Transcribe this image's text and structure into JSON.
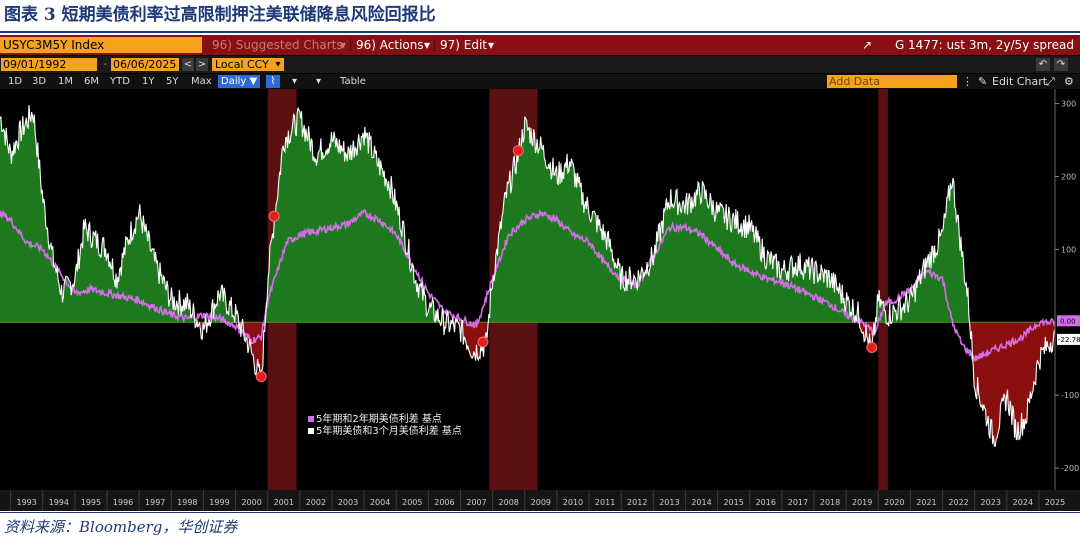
{
  "caption": {
    "title": "图表 3 短期美债利率过高限制押注美联储降息风险回报比"
  },
  "source": {
    "text": "资料来源：Bloomberg，华创证券"
  },
  "toolbar": {
    "ticker": "USYC3M5Y Index",
    "suggested": "96) Suggested Charts",
    "actions": "96) Actions",
    "edit": "97) Edit",
    "chart_title": "G 1477: ust 3m, 2y/5y spread"
  },
  "dates": {
    "start": "09/01/1992",
    "end": "06/06/2025",
    "currency": "Local CCY"
  },
  "periods": [
    "1D",
    "3D",
    "1M",
    "6M",
    "YTD",
    "1Y",
    "5Y",
    "Max"
  ],
  "frequency": "Daily",
  "table_label": "Table",
  "add_data_placeholder": "Add Data",
  "edit_chart_label": "Edit Chart",
  "colors": {
    "purple": "#d46ee8",
    "white": "#ffffff",
    "green_fill": "#1f7a1f",
    "red_fill": "#8b1010",
    "recession": "#6b1414"
  },
  "chart_data": {
    "type": "line",
    "x_ticks": [
      "1993",
      "1994",
      "1995",
      "1996",
      "1997",
      "1998",
      "1999",
      "2000",
      "2001",
      "2002",
      "2003",
      "2004",
      "2005",
      "2006",
      "2007",
      "2008",
      "2009",
      "2010",
      "2011",
      "2012",
      "2013",
      "2014",
      "2015",
      "2016",
      "2017",
      "2018",
      "2019",
      "2020",
      "2021",
      "2022",
      "2023",
      "2024",
      "2025"
    ],
    "y_ticks": [
      300,
      200,
      100,
      -100,
      -200
    ],
    "ylim": [
      -230,
      320
    ],
    "last_values": {
      "purple": "0.00",
      "white": "-22.78"
    },
    "recessions": [
      [
        2001.0,
        2001.9
      ],
      [
        2007.9,
        2009.4
      ],
      [
        2020.0,
        2020.3
      ]
    ],
    "markers_x": [
      2000.8,
      2001.2,
      2007.7,
      2008.8,
      2019.8
    ],
    "series": [
      {
        "name": "5年期和2年期美债利差 基点",
        "x": [
          1992.7,
          1993.0,
          1993.5,
          1994.0,
          1994.5,
          1995.0,
          1995.5,
          1996.0,
          1996.5,
          1997.0,
          1997.5,
          1998.0,
          1998.5,
          1999.0,
          1999.5,
          2000.0,
          2000.5,
          2000.8,
          2001.0,
          2001.3,
          2001.6,
          2002.0,
          2002.5,
          2003.0,
          2003.5,
          2004.0,
          2004.5,
          2005.0,
          2005.5,
          2006.0,
          2006.5,
          2007.0,
          2007.5,
          2008.0,
          2008.5,
          2009.0,
          2009.5,
          2010.0,
          2010.5,
          2011.0,
          2011.5,
          2012.0,
          2012.5,
          2013.0,
          2013.5,
          2014.0,
          2014.5,
          2015.0,
          2015.5,
          2016.0,
          2016.5,
          2017.0,
          2017.5,
          2018.0,
          2018.5,
          2019.0,
          2019.5,
          2019.9,
          2020.2,
          2020.5,
          2021.0,
          2021.5,
          2022.0,
          2022.3,
          2022.6,
          2023.0,
          2023.5,
          2024.0,
          2024.5,
          2025.0,
          2025.4
        ],
        "values": [
          150,
          140,
          110,
          100,
          70,
          40,
          45,
          40,
          35,
          30,
          20,
          10,
          5,
          10,
          5,
          -5,
          -25,
          -20,
          30,
          70,
          110,
          120,
          125,
          130,
          135,
          150,
          140,
          120,
          80,
          40,
          15,
          5,
          -5,
          60,
          120,
          140,
          150,
          140,
          120,
          110,
          80,
          60,
          50,
          90,
          130,
          130,
          120,
          100,
          80,
          70,
          60,
          55,
          45,
          35,
          25,
          10,
          0,
          -15,
          25,
          30,
          45,
          70,
          60,
          0,
          -30,
          -50,
          -40,
          -30,
          -20,
          0,
          0
        ]
      },
      {
        "name": "5年期美债和3个月美债利差 基点",
        "x": [
          1992.7,
          1993.0,
          1993.3,
          1993.7,
          1994.0,
          1994.3,
          1994.6,
          1995.0,
          1995.3,
          1995.7,
          1996.0,
          1996.3,
          1996.7,
          1997.0,
          1997.5,
          1998.0,
          1998.5,
          1999.0,
          1999.5,
          2000.0,
          2000.4,
          2000.8,
          2001.0,
          2001.2,
          2001.5,
          2002.0,
          2002.5,
          2003.0,
          2003.5,
          2004.0,
          2004.4,
          2004.8,
          2005.2,
          2005.6,
          2006.0,
          2006.5,
          2007.0,
          2007.4,
          2007.8,
          2008.0,
          2008.4,
          2008.8,
          2009.0,
          2009.5,
          2010.0,
          2010.4,
          2010.8,
          2011.2,
          2011.6,
          2012.0,
          2012.5,
          2013.0,
          2013.5,
          2014.0,
          2014.5,
          2015.0,
          2015.5,
          2016.0,
          2016.5,
          2017.0,
          2017.5,
          2018.0,
          2018.5,
          2019.0,
          2019.4,
          2019.8,
          2020.0,
          2020.3,
          2020.7,
          2021.0,
          2021.5,
          2022.0,
          2022.3,
          2022.5,
          2022.8,
          2023.0,
          2023.3,
          2023.6,
          2024.0,
          2024.3,
          2024.6,
          2025.0,
          2025.4
        ],
        "values": [
          280,
          230,
          260,
          290,
          170,
          90,
          40,
          60,
          130,
          110,
          100,
          60,
          120,
          150,
          80,
          30,
          25,
          -10,
          40,
          10,
          -30,
          -80,
          60,
          140,
          250,
          280,
          230,
          250,
          230,
          260,
          220,
          190,
          130,
          60,
          20,
          0,
          -10,
          -40,
          -30,
          60,
          170,
          230,
          270,
          240,
          200,
          220,
          170,
          140,
          110,
          60,
          60,
          90,
          170,
          160,
          180,
          150,
          140,
          130,
          90,
          70,
          80,
          70,
          60,
          30,
          10,
          -40,
          30,
          10,
          20,
          30,
          80,
          120,
          200,
          130,
          30,
          -80,
          -120,
          -160,
          -100,
          -150,
          -130,
          -50,
          -22.78
        ]
      }
    ]
  }
}
